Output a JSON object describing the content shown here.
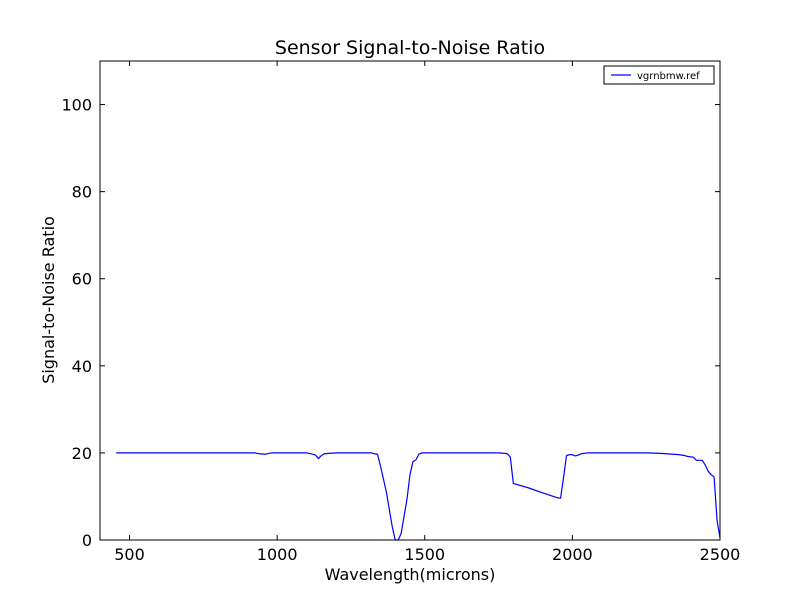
{
  "chart_data": {
    "type": "line",
    "title": "Sensor Signal-to-Noise Ratio",
    "xlabel": "Wavelength(microns)",
    "ylabel": "Signal-to-Noise Ratio",
    "xlim": [
      400,
      2500
    ],
    "ylim": [
      0,
      110
    ],
    "xticks": [
      500,
      1000,
      1500,
      2000,
      2500
    ],
    "yticks": [
      0,
      20,
      40,
      60,
      80,
      100
    ],
    "grid": false,
    "legend_position": "top-right",
    "line_color": "#0000ff",
    "series": [
      {
        "name": "vgrnbmw.ref",
        "x": [
          455,
          500,
          550,
          600,
          650,
          700,
          750,
          800,
          850,
          900,
          925,
          940,
          960,
          980,
          1000,
          1050,
          1100,
          1115,
          1130,
          1140,
          1150,
          1160,
          1200,
          1250,
          1300,
          1320,
          1330,
          1340,
          1350,
          1360,
          1370,
          1380,
          1390,
          1400,
          1410,
          1420,
          1430,
          1440,
          1450,
          1460,
          1470,
          1480,
          1490,
          1500,
          1550,
          1600,
          1650,
          1700,
          1750,
          1770,
          1780,
          1790,
          1800,
          1850,
          1900,
          1950,
          1960,
          1970,
          1980,
          1990,
          2000,
          2010,
          2020,
          2030,
          2050,
          2080,
          2100,
          2150,
          2200,
          2250,
          2300,
          2340,
          2360,
          2380,
          2390,
          2400,
          2410,
          2420,
          2430,
          2440,
          2450,
          2460,
          2470,
          2480,
          2490,
          2500
        ],
        "y": [
          20,
          20,
          20,
          20,
          20,
          20,
          20,
          20,
          20,
          20,
          20,
          19.8,
          19.7,
          20,
          20,
          20,
          20,
          19.8,
          19.5,
          18.7,
          19.4,
          19.8,
          20,
          20,
          20,
          20,
          19.8,
          19.7,
          17,
          14,
          11,
          7,
          3,
          0,
          0,
          1.5,
          5.5,
          9.5,
          15,
          18,
          18.4,
          19.7,
          20,
          20,
          20,
          20,
          20,
          20,
          20,
          19.9,
          19.8,
          19,
          13,
          12,
          10.8,
          9.7,
          9.6,
          14.3,
          19.4,
          19.6,
          19.6,
          19.3,
          19.5,
          19.8,
          20,
          20,
          20,
          20,
          20,
          20,
          19.9,
          19.7,
          19.6,
          19.4,
          19.2,
          19.1,
          19,
          18.3,
          18.3,
          18.3,
          17.2,
          15.8,
          15,
          14.5,
          4.5,
          0.5
        ]
      }
    ]
  }
}
